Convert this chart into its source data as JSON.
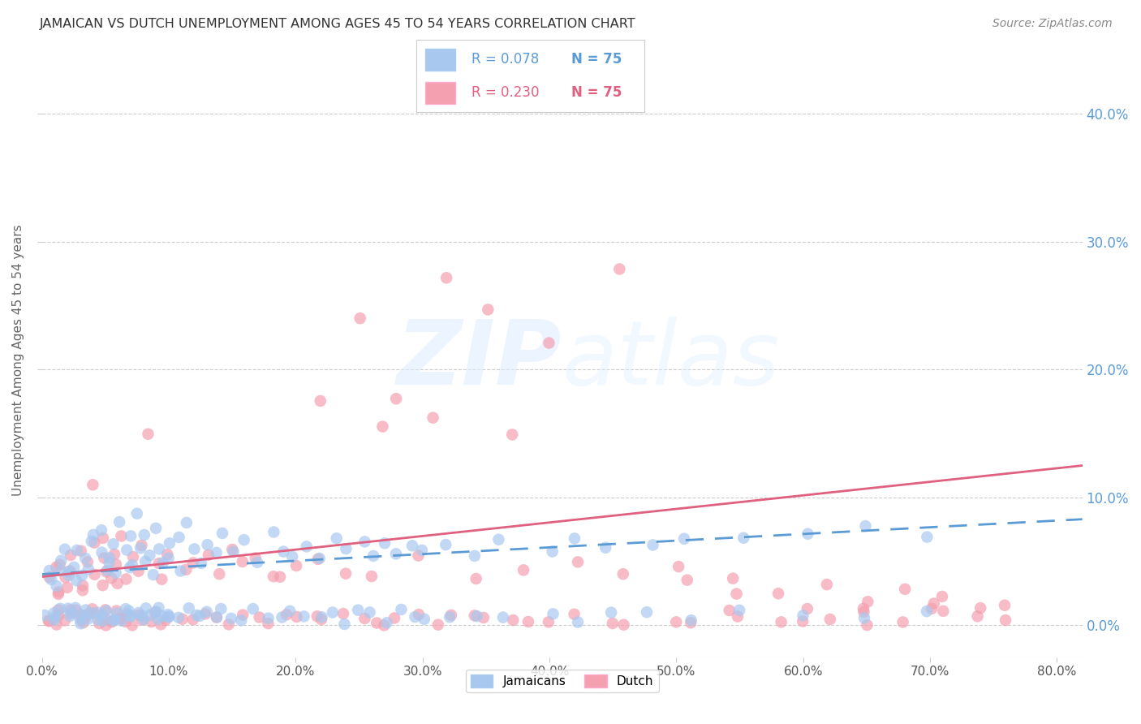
{
  "title": "JAMAICAN VS DUTCH UNEMPLOYMENT AMONG AGES 45 TO 54 YEARS CORRELATION CHART",
  "source": "Source: ZipAtlas.com",
  "ylabel": "Unemployment Among Ages 45 to 54 years",
  "xlim": [
    0.0,
    0.82
  ],
  "ylim": [
    -0.025,
    0.44
  ],
  "background_color": "#ffffff",
  "grid_color": "#cccccc",
  "title_color": "#333333",
  "ytick_color": "#5b9bd5",
  "watermark": "ZIPatlas",
  "jamaican_color": "#a8c8f0",
  "dutch_color": "#f4a0b0",
  "jamaican_line_color": "#5b9bd5",
  "dutch_line_color": "#e06080",
  "jamaican_x": [
    0.005,
    0.008,
    0.01,
    0.012,
    0.015,
    0.018,
    0.02,
    0.022,
    0.025,
    0.028,
    0.03,
    0.032,
    0.035,
    0.038,
    0.04,
    0.042,
    0.045,
    0.048,
    0.05,
    0.052,
    0.055,
    0.058,
    0.06,
    0.062,
    0.065,
    0.068,
    0.07,
    0.072,
    0.075,
    0.078,
    0.08,
    0.082,
    0.085,
    0.088,
    0.09,
    0.092,
    0.095,
    0.098,
    0.1,
    0.105,
    0.11,
    0.115,
    0.12,
    0.125,
    0.13,
    0.135,
    0.14,
    0.15,
    0.16,
    0.17,
    0.18,
    0.19,
    0.2,
    0.21,
    0.22,
    0.23,
    0.24,
    0.25,
    0.26,
    0.27,
    0.28,
    0.29,
    0.3,
    0.32,
    0.34,
    0.36,
    0.4,
    0.42,
    0.45,
    0.48,
    0.51,
    0.55,
    0.6,
    0.65,
    0.7
  ],
  "jamaican_y": [
    0.04,
    0.035,
    0.045,
    0.03,
    0.05,
    0.038,
    0.055,
    0.042,
    0.048,
    0.035,
    0.06,
    0.038,
    0.052,
    0.065,
    0.045,
    0.07,
    0.058,
    0.042,
    0.075,
    0.055,
    0.048,
    0.065,
    0.038,
    0.08,
    0.058,
    0.045,
    0.07,
    0.052,
    0.085,
    0.062,
    0.048,
    0.072,
    0.055,
    0.04,
    0.078,
    0.06,
    0.048,
    0.065,
    0.055,
    0.07,
    0.042,
    0.078,
    0.058,
    0.048,
    0.065,
    0.055,
    0.072,
    0.058,
    0.065,
    0.048,
    0.072,
    0.06,
    0.055,
    0.065,
    0.052,
    0.068,
    0.058,
    0.065,
    0.055,
    0.06,
    0.058,
    0.065,
    0.06,
    0.062,
    0.055,
    0.068,
    0.06,
    0.065,
    0.062,
    0.065,
    0.068,
    0.07,
    0.072,
    0.075,
    0.07
  ],
  "jamaican_y_low": [
    0.008,
    0.005,
    0.01,
    0.005,
    0.012,
    0.008,
    0.015,
    0.01,
    0.012,
    0.005,
    0.008,
    0.005,
    0.01,
    0.008,
    0.012,
    0.005,
    0.01,
    0.008,
    0.005,
    0.012,
    0.005,
    0.008,
    0.01,
    0.005,
    0.012,
    0.008,
    0.005,
    0.01,
    0.008,
    0.005,
    0.012,
    0.005,
    0.008,
    0.01,
    0.005,
    0.012,
    0.008,
    0.005,
    0.01,
    0.008,
    0.005,
    0.012,
    0.005,
    0.008,
    0.01,
    0.005,
    0.012,
    0.008,
    0.005,
    0.01,
    0.008,
    0.005,
    0.012,
    0.005,
    0.008,
    0.01,
    0.005,
    0.012,
    0.008,
    0.005,
    0.01,
    0.008,
    0.005,
    0.012,
    0.005,
    0.008,
    0.01,
    0.005,
    0.012,
    0.008,
    0.005,
    0.01,
    0.008,
    0.005,
    0.012
  ],
  "dutch_x": [
    0.005,
    0.008,
    0.01,
    0.012,
    0.015,
    0.018,
    0.02,
    0.022,
    0.025,
    0.028,
    0.03,
    0.032,
    0.035,
    0.038,
    0.04,
    0.042,
    0.045,
    0.048,
    0.05,
    0.052,
    0.055,
    0.058,
    0.06,
    0.062,
    0.065,
    0.068,
    0.07,
    0.075,
    0.08,
    0.085,
    0.09,
    0.095,
    0.1,
    0.11,
    0.12,
    0.13,
    0.14,
    0.15,
    0.16,
    0.17,
    0.18,
    0.19,
    0.2,
    0.22,
    0.24,
    0.26,
    0.3,
    0.34,
    0.38,
    0.42,
    0.46,
    0.5,
    0.54,
    0.58,
    0.62,
    0.65,
    0.68,
    0.71,
    0.74,
    0.76,
    0.25,
    0.28,
    0.31,
    0.35,
    0.4,
    0.45,
    0.22,
    0.27,
    0.32,
    0.37,
    0.51,
    0.55,
    0.6,
    0.65,
    0.7
  ],
  "dutch_y": [
    0.035,
    0.028,
    0.042,
    0.025,
    0.048,
    0.032,
    0.055,
    0.038,
    0.045,
    0.028,
    0.058,
    0.032,
    0.048,
    0.112,
    0.038,
    0.065,
    0.052,
    0.035,
    0.068,
    0.042,
    0.035,
    0.058,
    0.03,
    0.072,
    0.045,
    0.035,
    0.055,
    0.038,
    0.065,
    0.15,
    0.048,
    0.035,
    0.055,
    0.042,
    0.048,
    0.055,
    0.042,
    0.06,
    0.048,
    0.055,
    0.038,
    0.042,
    0.048,
    0.055,
    0.038,
    0.042,
    0.055,
    0.035,
    0.042,
    0.048,
    0.038,
    0.045,
    0.035,
    0.025,
    0.032,
    0.022,
    0.028,
    0.02,
    0.015,
    0.018,
    0.24,
    0.175,
    0.16,
    0.25,
    0.22,
    0.28,
    0.175,
    0.16,
    0.27,
    0.15,
    0.035,
    0.025,
    0.015,
    0.012,
    0.018
  ],
  "dutch_y_low": [
    0.005,
    0.002,
    0.008,
    0.002,
    0.01,
    0.005,
    0.012,
    0.008,
    0.01,
    0.002,
    0.005,
    0.002,
    0.008,
    0.005,
    0.01,
    0.002,
    0.008,
    0.005,
    0.002,
    0.01,
    0.002,
    0.005,
    0.008,
    0.002,
    0.01,
    0.005,
    0.002,
    0.008,
    0.005,
    0.002,
    0.01,
    0.002,
    0.005,
    0.008,
    0.002,
    0.01,
    0.005,
    0.002,
    0.008,
    0.005,
    0.002,
    0.01,
    0.002,
    0.005,
    0.008,
    0.002,
    0.01,
    0.005,
    0.002,
    0.008,
    0.005,
    0.002,
    0.01,
    0.002,
    0.005,
    0.008,
    0.002,
    0.01,
    0.005,
    0.002,
    0.008,
    0.005,
    0.002,
    0.01,
    0.002,
    0.005,
    0.008,
    0.002,
    0.01,
    0.005,
    0.002,
    0.008,
    0.005,
    0.002,
    0.01
  ]
}
